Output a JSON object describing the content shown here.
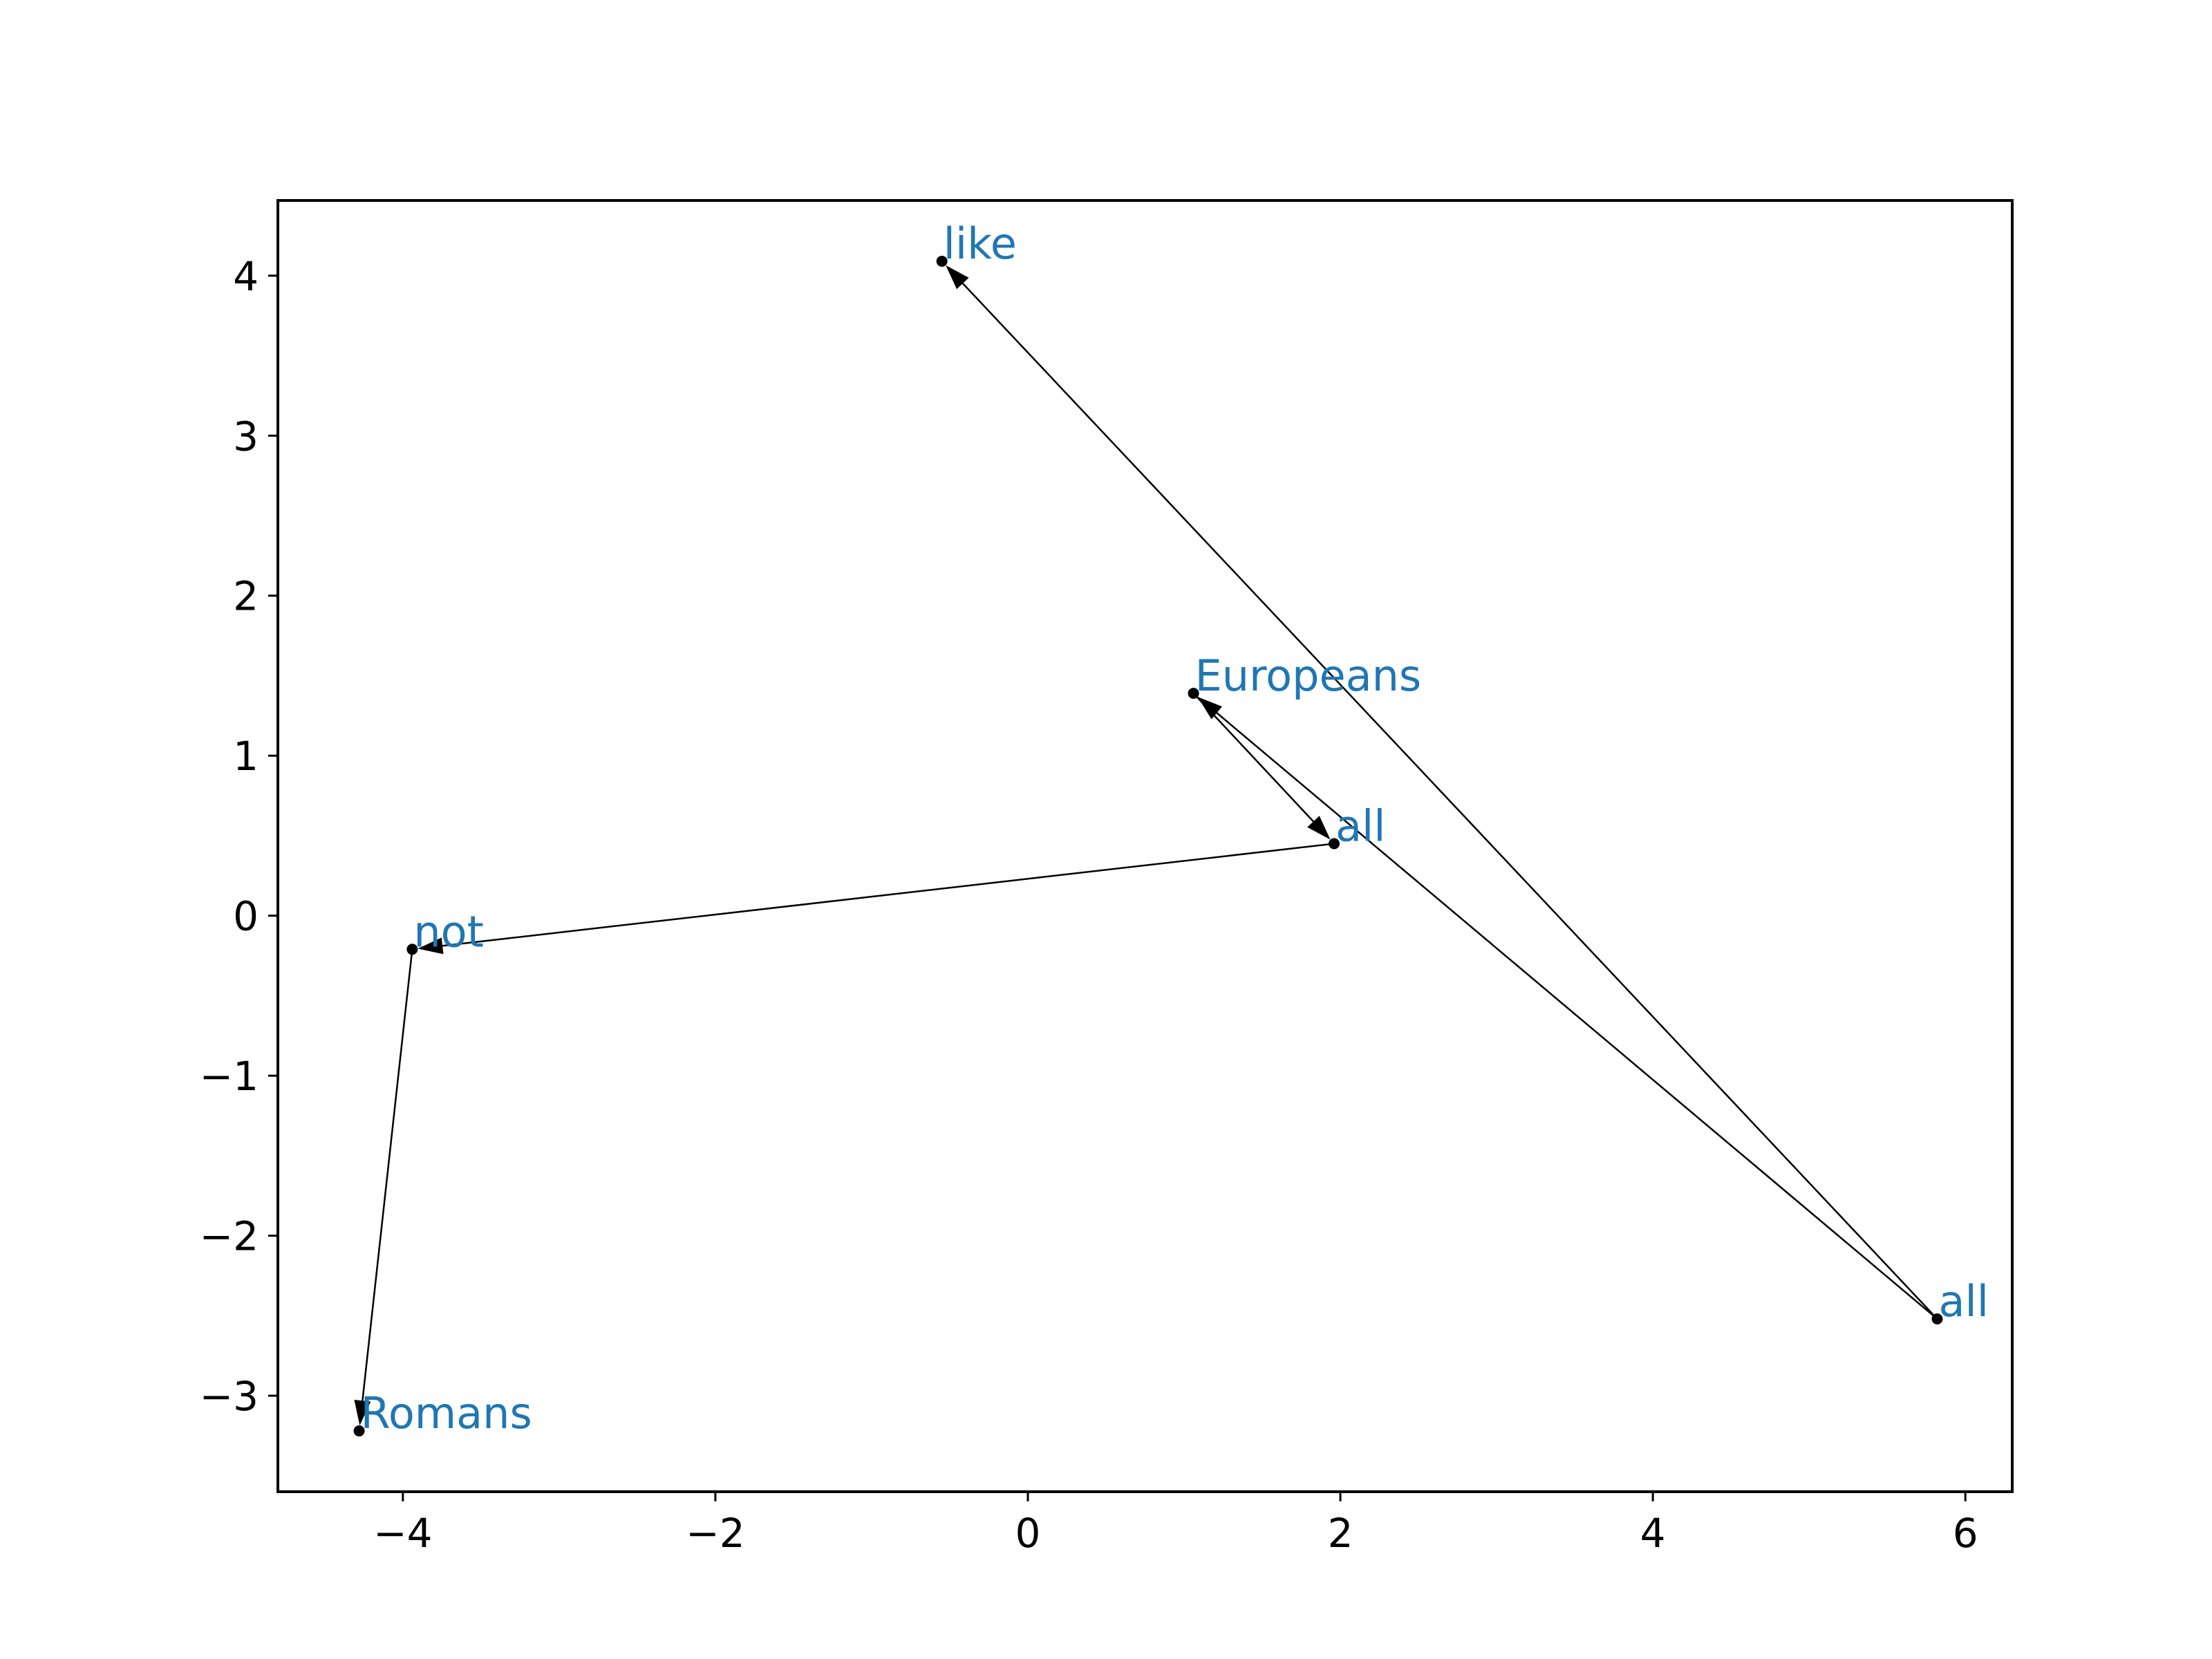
{
  "chart_data": {
    "type": "scatter",
    "title": "",
    "xlabel": "",
    "ylabel": "",
    "xlim": [
      -4.8,
      6.3
    ],
    "ylim": [
      -3.6,
      4.47
    ],
    "xticks": [
      -4,
      -2,
      0,
      2,
      4,
      6
    ],
    "yticks": [
      -3,
      -2,
      -1,
      0,
      1,
      2,
      3,
      4
    ],
    "xtick_labels": [
      "−4",
      "−2",
      "0",
      "2",
      "4",
      "6"
    ],
    "ytick_labels": [
      "−3",
      "−2",
      "−1",
      "0",
      "1",
      "2",
      "3",
      "4"
    ],
    "grid": false,
    "label_color": "#1f77b4",
    "point_color": "#000000",
    "points": [
      {
        "label": "all",
        "x": 5.82,
        "y": -2.52
      },
      {
        "label": "Europeans",
        "x": 1.06,
        "y": 1.39
      },
      {
        "label": "like",
        "x": -0.55,
        "y": 4.09
      },
      {
        "label": "all",
        "x": 1.96,
        "y": 0.45
      },
      {
        "label": "not",
        "x": -3.94,
        "y": -0.21
      },
      {
        "label": "Romans",
        "x": -4.28,
        "y": -3.22
      }
    ],
    "arrows": [
      {
        "from": 0,
        "to": 2
      },
      {
        "from": 0,
        "to": 1
      },
      {
        "from": 1,
        "to": 3
      },
      {
        "from": 3,
        "to": 4
      },
      {
        "from": 4,
        "to": 5
      }
    ]
  }
}
